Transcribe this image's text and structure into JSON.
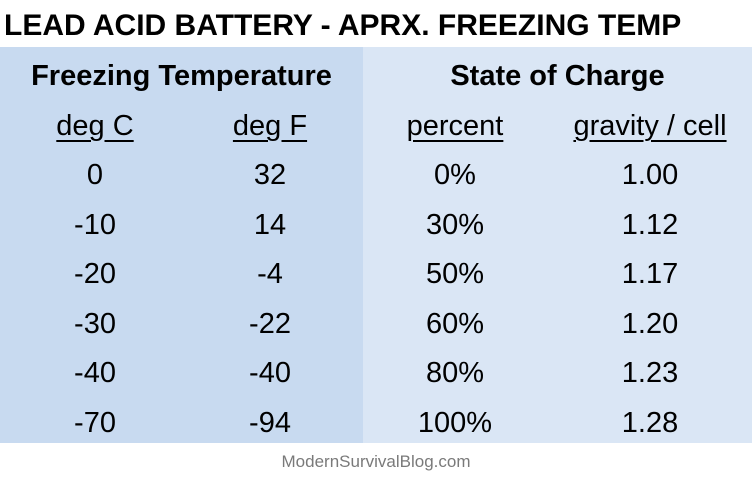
{
  "title": "LEAD ACID BATTERY - APRX. FREEZING TEMP",
  "groups": {
    "freezing": "Freezing Temperature",
    "charge": "State of Charge"
  },
  "columns": [
    "deg C",
    "deg F",
    "percent",
    "gravity / cell"
  ],
  "rows": [
    [
      "0",
      "32",
      "0%",
      "1.00"
    ],
    [
      "-10",
      "14",
      "30%",
      "1.12"
    ],
    [
      "-20",
      "-4",
      "50%",
      "1.17"
    ],
    [
      "-30",
      "-22",
      "60%",
      "1.20"
    ],
    [
      "-40",
      "-40",
      "80%",
      "1.23"
    ],
    [
      "-70",
      "-94",
      "100%",
      "1.28"
    ]
  ],
  "footer": "ModernSurvivalBlog.com",
  "colors": {
    "left_panel": "#c8daf0",
    "right_panel": "#dae6f5",
    "footer_text": "#7a7a7a"
  }
}
